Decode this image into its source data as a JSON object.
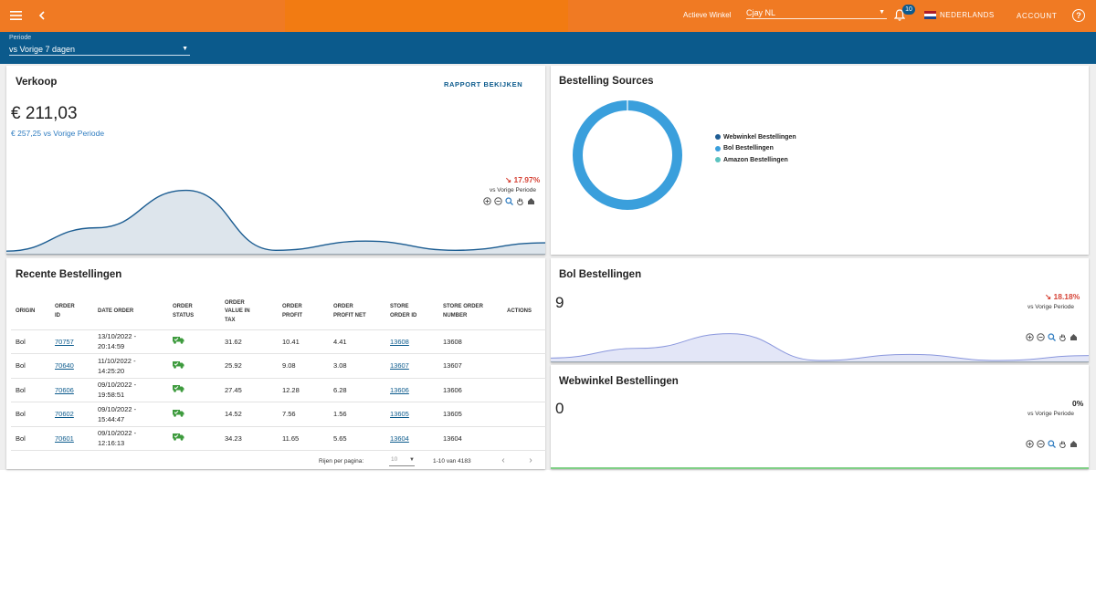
{
  "topbar": {
    "menu_icon": "hamburger-menu-icon",
    "back_icon": "chevron-left-icon",
    "store_label": "Actieve Winkel",
    "store_value": "Cjay NL",
    "notification_count": "10",
    "language": "NEDERLANDS",
    "account": "ACCOUNT",
    "colors": {
      "bar": "#f07a23",
      "badge": "#0d5a8c"
    }
  },
  "period": {
    "label": "Periode",
    "value": "vs Vorige 7 dagen"
  },
  "verkoop": {
    "title": "Verkoop",
    "rapport": "RAPPORT BEKIJKEN",
    "amount": "€ 211,03",
    "previous": "€ 257,25 vs Vorige Periode",
    "change": "↘ 17.97%",
    "change_label": "vs Vorige Periode",
    "chart_data": {
      "type": "area",
      "series": [
        {
          "values": [
            2,
            30,
            75,
            3,
            14,
            3,
            12
          ]
        }
      ]
    }
  },
  "sources": {
    "title": "Bestelling Sources",
    "legend": [
      {
        "label": "Webwinkel Bestellingen",
        "color": "#1f5d94"
      },
      {
        "label": "Bol Bestellingen",
        "color": "#3a9fdc"
      },
      {
        "label": "Amazon Bestellingen",
        "color": "#5cc3c0"
      }
    ],
    "chart_data": {
      "type": "pie",
      "categories": [
        "Webwinkel Bestellingen",
        "Bol Bestellingen",
        "Amazon Bestellingen"
      ],
      "values": [
        0,
        9,
        0
      ]
    }
  },
  "orders": {
    "title": "Recente Bestellingen",
    "headers": [
      [
        "ORIGIN"
      ],
      [
        "ORDER",
        "ID"
      ],
      [
        "DATE ORDER"
      ],
      [
        "ORDER",
        "STATUS"
      ],
      [
        "ORDER",
        "VALUE IN",
        "TAX"
      ],
      [
        "ORDER",
        "PROFIT"
      ],
      [
        "ORDER",
        "PROFIT NET"
      ],
      [
        "STORE",
        "ORDER ID"
      ],
      [
        "STORE ORDER",
        "NUMBER"
      ],
      [
        "ACTIONS"
      ]
    ],
    "rows": [
      {
        "origin": "Bol",
        "id": "70757",
        "date1": "13/10/2022 -",
        "date2": "20:14:59",
        "value": "31.62",
        "profit": "10.41",
        "net": "4.41",
        "store_id": "13608",
        "store_nr": "13608"
      },
      {
        "origin": "Bol",
        "id": "70640",
        "date1": "11/10/2022 -",
        "date2": "14:25:20",
        "value": "25.92",
        "profit": "9.08",
        "net": "3.08",
        "store_id": "13607",
        "store_nr": "13607"
      },
      {
        "origin": "Bol",
        "id": "70606",
        "date1": "09/10/2022 -",
        "date2": "19:58:51",
        "value": "27.45",
        "profit": "12.28",
        "net": "6.28",
        "store_id": "13606",
        "store_nr": "13606"
      },
      {
        "origin": "Bol",
        "id": "70602",
        "date1": "09/10/2022 -",
        "date2": "15:44:47",
        "value": "14.52",
        "profit": "7.56",
        "net": "1.56",
        "store_id": "13605",
        "store_nr": "13605"
      },
      {
        "origin": "Bol",
        "id": "70601",
        "date1": "09/10/2022 -",
        "date2": "12:16:13",
        "value": "34.23",
        "profit": "11.65",
        "net": "5.65",
        "store_id": "13604",
        "store_nr": "13604"
      }
    ],
    "pager_label": "Rijen per pagina:",
    "pager_value": "10",
    "pager_range": "1-10 van 4183"
  },
  "bol": {
    "title": "Bol Bestellingen",
    "count": "9",
    "change": "↘ 18.18%",
    "change_label": "vs Vorige Periode",
    "chart_data": {
      "type": "area",
      "series": [
        {
          "values": [
            2,
            10,
            22,
            0,
            5,
            0,
            4
          ]
        }
      ]
    }
  },
  "webwinkel": {
    "title": "Webwinkel Bestellingen",
    "count": "0",
    "change": "0%",
    "change_label": "vs Vorige Periode"
  }
}
